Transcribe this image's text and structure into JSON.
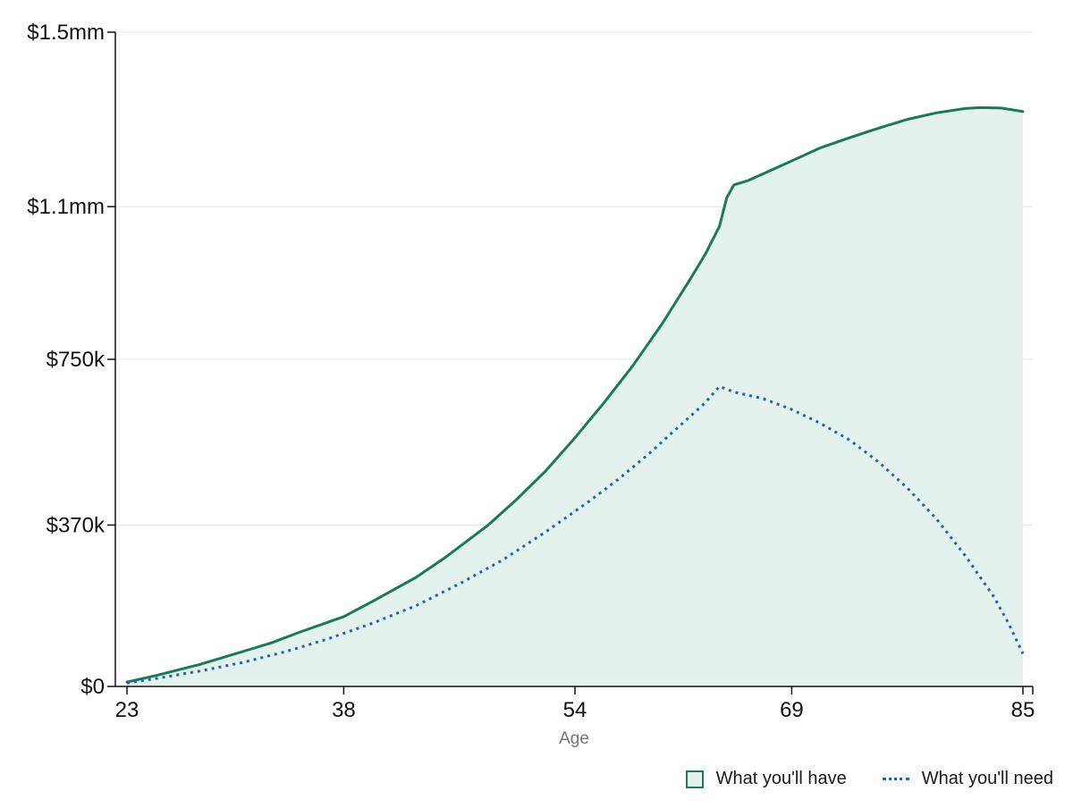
{
  "chart_data": {
    "type": "area",
    "xlabel": "Age",
    "ylabel": "",
    "x_ticks": [
      23,
      38,
      54,
      69,
      85
    ],
    "xlim": [
      23,
      85
    ],
    "y_ticks": [
      0,
      370000,
      750000,
      1100000,
      1500000
    ],
    "y_tick_labels": [
      "$0",
      "$370k",
      "$750k",
      "$1.1mm",
      "$1.5mm"
    ],
    "ylim": [
      0,
      1500000
    ],
    "grid": true,
    "legend_position": "bottom-right",
    "series": [
      {
        "name": "What you'll have",
        "style": "area",
        "color": "#1a7a55",
        "fill": "#e3f2ec",
        "points": [
          [
            23,
            10000
          ],
          [
            25,
            25000
          ],
          [
            28,
            50000
          ],
          [
            31,
            80000
          ],
          [
            33,
            100000
          ],
          [
            35,
            125000
          ],
          [
            38,
            160000
          ],
          [
            40,
            195000
          ],
          [
            43,
            250000
          ],
          [
            45,
            295000
          ],
          [
            48,
            370000
          ],
          [
            50,
            430000
          ],
          [
            52,
            495000
          ],
          [
            54,
            570000
          ],
          [
            56,
            650000
          ],
          [
            58,
            735000
          ],
          [
            60,
            830000
          ],
          [
            62,
            935000
          ],
          [
            63,
            990000
          ],
          [
            64,
            1055000
          ],
          [
            64.5,
            1120000
          ],
          [
            65,
            1150000
          ],
          [
            66,
            1160000
          ],
          [
            67,
            1175000
          ],
          [
            69,
            1205000
          ],
          [
            71,
            1235000
          ],
          [
            73,
            1258000
          ],
          [
            75,
            1280000
          ],
          [
            77,
            1300000
          ],
          [
            79,
            1315000
          ],
          [
            81,
            1325000
          ],
          [
            82,
            1327000
          ],
          [
            83.5,
            1326000
          ],
          [
            85,
            1318000
          ]
        ]
      },
      {
        "name": "What you'll need",
        "style": "dotted",
        "color": "#1f63b3",
        "points": [
          [
            23,
            8000
          ],
          [
            25,
            18000
          ],
          [
            28,
            35000
          ],
          [
            31,
            55000
          ],
          [
            34,
            80000
          ],
          [
            37,
            110000
          ],
          [
            40,
            145000
          ],
          [
            43,
            185000
          ],
          [
            46,
            235000
          ],
          [
            49,
            290000
          ],
          [
            52,
            355000
          ],
          [
            55,
            425000
          ],
          [
            57,
            475000
          ],
          [
            59,
            530000
          ],
          [
            61,
            590000
          ],
          [
            63,
            650000
          ],
          [
            64,
            688000
          ],
          [
            65,
            675000
          ],
          [
            67,
            660000
          ],
          [
            69,
            635000
          ],
          [
            71,
            603000
          ],
          [
            73,
            565000
          ],
          [
            75,
            515000
          ],
          [
            77,
            455000
          ],
          [
            79,
            385000
          ],
          [
            81,
            300000
          ],
          [
            83,
            205000
          ],
          [
            84,
            145000
          ],
          [
            85,
            75000
          ]
        ]
      }
    ]
  },
  "legend": {
    "have_label": "What you'll have",
    "need_label": "What you'll need"
  },
  "colors": {
    "have_line": "#1a7a55",
    "have_fill": "#e3f2ec",
    "need_line": "#1f63b3"
  }
}
